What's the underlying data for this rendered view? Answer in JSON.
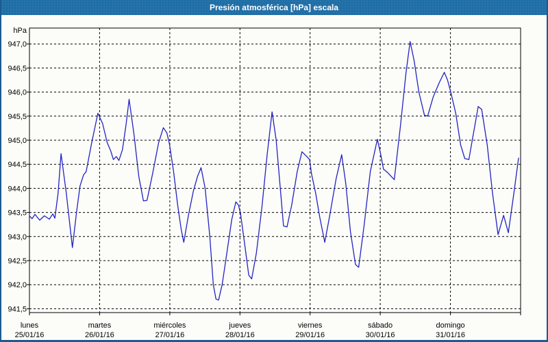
{
  "window": {
    "title": "Presión atmosférica [hPa] escala"
  },
  "colors": {
    "title_bar": "#1f6ea6",
    "title_text": "#ffffff",
    "frame_border": "#1a5b91",
    "window_bg": "#fcfcf9",
    "grid": "#000000",
    "plot_line": "#2222c2"
  },
  "chart_data": {
    "type": "line",
    "title": "Presión atmosférica [hPa] escala",
    "ylabel_unit": "hPa",
    "grid_style": "dashed",
    "legend": "none",
    "ylim": [
      941.42,
      947.33
    ],
    "yticks": {
      "min": 941.5,
      "max": 947.0,
      "step": 0.5,
      "decimal_separator": ","
    },
    "ytick_labels": [
      "947,0",
      "946,5",
      "946,0",
      "945,5",
      "945,0",
      "944,5",
      "944,0",
      "943,5",
      "943,0",
      "942,5",
      "942,0",
      "941,5"
    ],
    "x_hours_total": 168,
    "x_days": [
      {
        "name": "lunes",
        "date": "25/01/16"
      },
      {
        "name": "martes",
        "date": "26/01/16"
      },
      {
        "name": "miércoles",
        "date": "27/01/16"
      },
      {
        "name": "jueves",
        "date": "28/01/16"
      },
      {
        "name": "viernes",
        "date": "29/01/16"
      },
      {
        "name": "sábado",
        "date": "30/01/16"
      },
      {
        "name": "domingo",
        "date": "31/01/16"
      }
    ],
    "series": [
      {
        "name": "Presión atmosférica [hPa]",
        "points": [
          [
            0,
            943.43
          ],
          [
            0.9,
            943.37
          ],
          [
            1.9,
            943.46
          ],
          [
            3.5,
            943.34
          ],
          [
            5.1,
            943.43
          ],
          [
            6.8,
            943.36
          ],
          [
            8,
            943.47
          ],
          [
            8.7,
            943.38
          ],
          [
            9.8,
            943.9
          ],
          [
            10.8,
            944.72
          ],
          [
            12.6,
            943.9
          ],
          [
            14.7,
            942.77
          ],
          [
            16.1,
            943.5
          ],
          [
            17.3,
            944.05
          ],
          [
            18.5,
            944.28
          ],
          [
            19.4,
            944.35
          ],
          [
            21.3,
            944.95
          ],
          [
            23.4,
            945.56
          ],
          [
            25,
            945.35
          ],
          [
            26.6,
            944.95
          ],
          [
            27.8,
            944.78
          ],
          [
            28.7,
            944.6
          ],
          [
            29.7,
            944.66
          ],
          [
            30.6,
            944.58
          ],
          [
            31.8,
            944.8
          ],
          [
            33,
            945.3
          ],
          [
            34.1,
            945.85
          ],
          [
            35.8,
            945.1
          ],
          [
            37.4,
            944.25
          ],
          [
            39,
            943.74
          ],
          [
            40.2,
            943.75
          ],
          [
            42.1,
            944.3
          ],
          [
            44.2,
            944.95
          ],
          [
            45.8,
            945.26
          ],
          [
            47,
            945.15
          ],
          [
            47.9,
            944.92
          ],
          [
            49.3,
            944.35
          ],
          [
            50.7,
            943.65
          ],
          [
            51.9,
            943.15
          ],
          [
            52.8,
            942.88
          ],
          [
            54.4,
            943.45
          ],
          [
            56.1,
            943.95
          ],
          [
            57.5,
            944.25
          ],
          [
            58.7,
            944.43
          ],
          [
            60.1,
            944
          ],
          [
            61.7,
            943
          ],
          [
            62.9,
            942
          ],
          [
            63.8,
            941.7
          ],
          [
            64.7,
            941.68
          ],
          [
            65.9,
            942
          ],
          [
            67.5,
            942.65
          ],
          [
            69.2,
            943.35
          ],
          [
            70.6,
            943.72
          ],
          [
            71.5,
            943.65
          ],
          [
            72.2,
            943.48
          ],
          [
            73.6,
            942.85
          ],
          [
            75,
            942.2
          ],
          [
            76,
            942.12
          ],
          [
            77.6,
            942.65
          ],
          [
            79.5,
            943.6
          ],
          [
            81.3,
            944.7
          ],
          [
            83,
            945.59
          ],
          [
            84.4,
            945
          ],
          [
            85.8,
            944
          ],
          [
            86.9,
            943.22
          ],
          [
            88.1,
            943.2
          ],
          [
            89.7,
            943.65
          ],
          [
            91.6,
            944.35
          ],
          [
            93.2,
            944.76
          ],
          [
            94.7,
            944.67
          ],
          [
            95.8,
            944.6
          ],
          [
            96.5,
            944.3
          ],
          [
            97.9,
            943.9
          ],
          [
            99.3,
            943.4
          ],
          [
            101,
            942.88
          ],
          [
            102.6,
            943.4
          ],
          [
            104.9,
            944.2
          ],
          [
            106.8,
            944.7
          ],
          [
            108.2,
            944.1
          ],
          [
            109.8,
            943.1
          ],
          [
            111.5,
            942.42
          ],
          [
            112.6,
            942.36
          ],
          [
            114.5,
            943.25
          ],
          [
            116.6,
            944.35
          ],
          [
            119,
            945.02
          ],
          [
            120.1,
            944.72
          ],
          [
            121.1,
            944.4
          ],
          [
            122.5,
            944.33
          ],
          [
            124.8,
            944.18
          ],
          [
            126.9,
            945.3
          ],
          [
            128.8,
            946.4
          ],
          [
            130.2,
            947.05
          ],
          [
            131.6,
            946.65
          ],
          [
            133.2,
            946
          ],
          [
            135.1,
            945.52
          ],
          [
            136.2,
            945.5
          ],
          [
            138.1,
            945.9
          ],
          [
            140.2,
            946.2
          ],
          [
            141.9,
            946.41
          ],
          [
            143,
            946.25
          ],
          [
            144.2,
            945.98
          ],
          [
            145.8,
            945.56
          ],
          [
            147.5,
            944.9
          ],
          [
            148.9,
            944.62
          ],
          [
            150.3,
            944.6
          ],
          [
            151.9,
            945.15
          ],
          [
            153.5,
            945.7
          ],
          [
            154.7,
            945.64
          ],
          [
            156.6,
            944.9
          ],
          [
            158.4,
            943.9
          ],
          [
            160.3,
            943.04
          ],
          [
            162.2,
            943.44
          ],
          [
            163.8,
            943.08
          ],
          [
            165.7,
            943.9
          ],
          [
            167.3,
            944.63
          ]
        ]
      }
    ]
  }
}
